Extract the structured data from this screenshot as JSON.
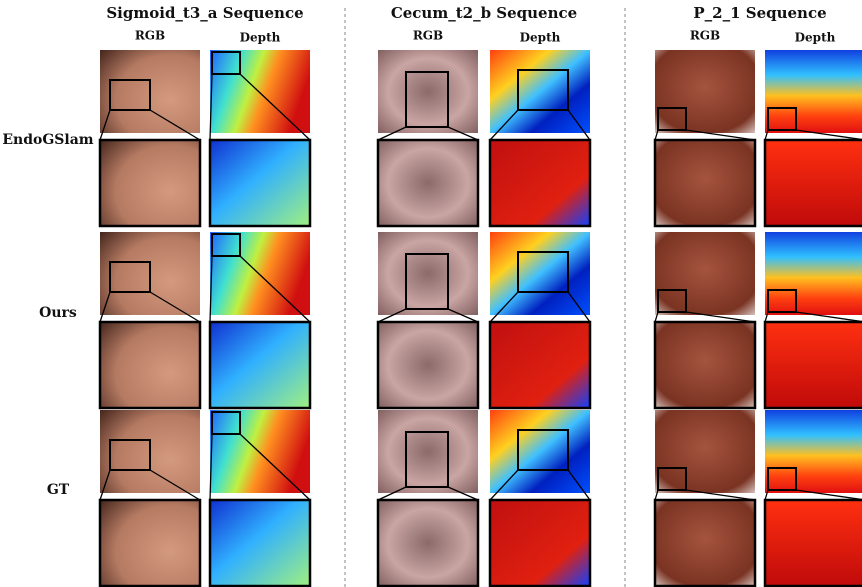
{
  "columns": [
    {
      "title": "Sigmoid_t3_a Sequence",
      "subtitles": [
        "RGB",
        "Depth"
      ]
    },
    {
      "title": "Cecum_t2_b Sequence",
      "subtitles": [
        "RGB",
        "Depth"
      ]
    },
    {
      "title": "P_2_1 Sequence",
      "subtitles": [
        "RGB",
        "Depth"
      ]
    }
  ],
  "rows": [
    {
      "label": "EndoGSlam"
    },
    {
      "label": "Ours"
    },
    {
      "label": "GT"
    }
  ]
}
